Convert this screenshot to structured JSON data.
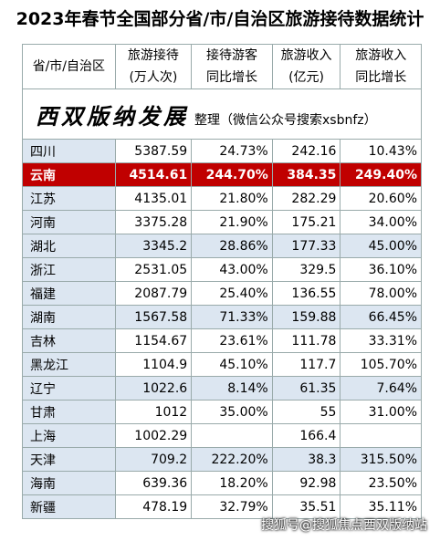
{
  "title": "2023年春节全国部分省/市/自治区旅游接待数据统计",
  "table": {
    "header": [
      [
        "省/市/自治区"
      ],
      [
        "旅游接待",
        "(万人次)"
      ],
      [
        "接待游客",
        "同比增长"
      ],
      [
        "旅游收入",
        "(亿元)"
      ],
      [
        "旅游收入",
        "同比增长"
      ]
    ],
    "banner": {
      "brand": "西双版纳发展",
      "note": "整理（微信公众号搜索xsbnfz）"
    },
    "highlight_row": 1,
    "rows": [
      [
        "四川",
        "5387.59",
        "24.73%",
        "242.16",
        "10.43%"
      ],
      [
        "云南",
        "4514.61",
        "244.70%",
        "384.35",
        "249.40%"
      ],
      [
        "江苏",
        "4135.01",
        "21.80%",
        "282.29",
        "20.60%"
      ],
      [
        "河南",
        "3375.28",
        "21.90%",
        "175.21",
        "34.00%"
      ],
      [
        "湖北",
        "3345.2",
        "28.86%",
        "177.33",
        "45.00%"
      ],
      [
        "浙江",
        "2531.05",
        "43.00%",
        "329.5",
        "36.10%"
      ],
      [
        "福建",
        "2087.79",
        "25.40%",
        "136.55",
        "78.00%"
      ],
      [
        "湖南",
        "1567.58",
        "71.33%",
        "159.88",
        "66.45%"
      ],
      [
        "吉林",
        "1154.67",
        "23.61%",
        "111.78",
        "33.31%"
      ],
      [
        "黑龙江",
        "1104.9",
        "45.10%",
        "117.7",
        "105.70%"
      ],
      [
        "辽宁",
        "1022.6",
        "8.14%",
        "61.35",
        "7.64%"
      ],
      [
        "甘肃",
        "1012",
        "35.00%",
        "55",
        "31.00%"
      ],
      [
        "上海",
        "1002.29",
        null,
        "166.4",
        null
      ],
      [
        "天津",
        "709.2",
        "222.20%",
        "38.3",
        "315.50%"
      ],
      [
        "海南",
        "639.36",
        "18.20%",
        "92.98",
        "23.50%"
      ],
      [
        "新疆",
        "478.19",
        "32.79%",
        "35.51",
        "35.11%"
      ]
    ]
  },
  "watermark": "搜狐号@搜狐焦点西双版纳站"
}
